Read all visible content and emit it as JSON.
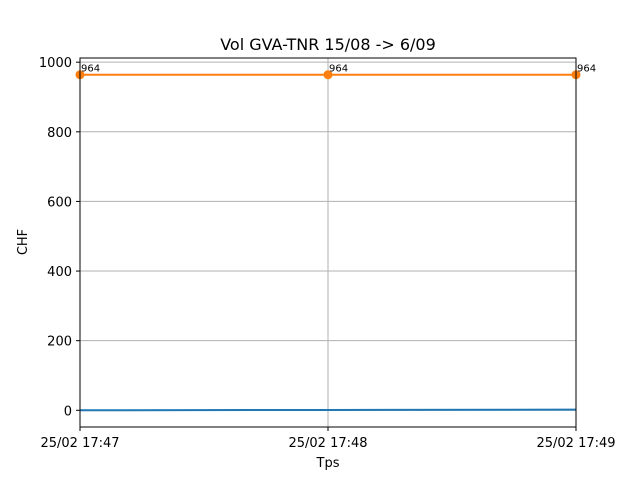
{
  "chart_data": {
    "type": "line",
    "title": "Vol GVA-TNR 15/08 -> 6/09",
    "xlabel": "Tps",
    "ylabel": "CHF",
    "x_ticks": [
      "25/02 17:47",
      "25/02 17:48",
      "25/02 17:49"
    ],
    "x_range": [
      0,
      2
    ],
    "y_ticks": [
      0,
      200,
      400,
      600,
      800,
      1000
    ],
    "ylim": [
      -48,
      1012
    ],
    "grid": true,
    "series": [
      {
        "color": "#1f77b4",
        "marker": "none",
        "x": [
          0,
          1,
          2
        ],
        "values": [
          0,
          1,
          2
        ]
      },
      {
        "color": "#ff7f0e",
        "marker": "circle",
        "x": [
          0,
          1,
          2
        ],
        "values": [
          964,
          964,
          964
        ],
        "labels": [
          "964",
          "964",
          "964"
        ]
      }
    ]
  }
}
